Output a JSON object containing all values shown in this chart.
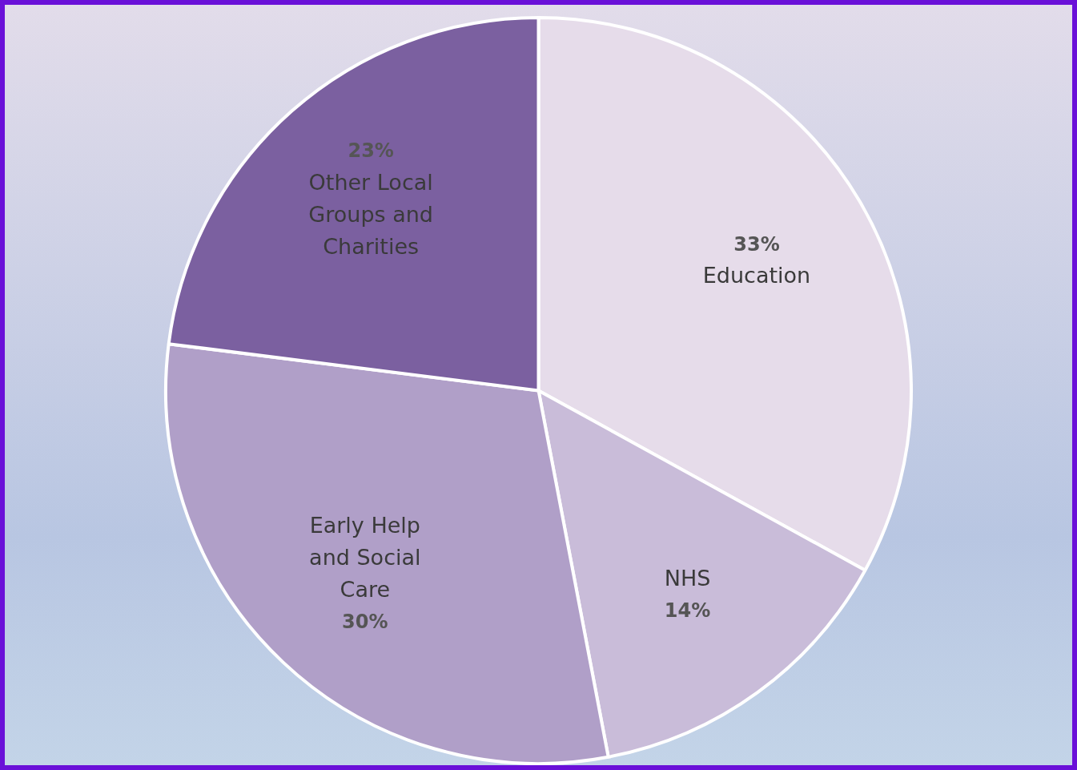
{
  "chart_data": {
    "type": "pie",
    "categories": [
      "Education",
      "NHS",
      "Early Help and Social Care",
      "Other Local Groups and Charities"
    ],
    "values": [
      33,
      14,
      30,
      23
    ],
    "colors": [
      "#e6dcea",
      "#c9bcd9",
      "#b09fc8",
      "#7b60a0"
    ],
    "value_labels": [
      "33%",
      "14%",
      "30%",
      "23%"
    ],
    "legend": false
  }
}
